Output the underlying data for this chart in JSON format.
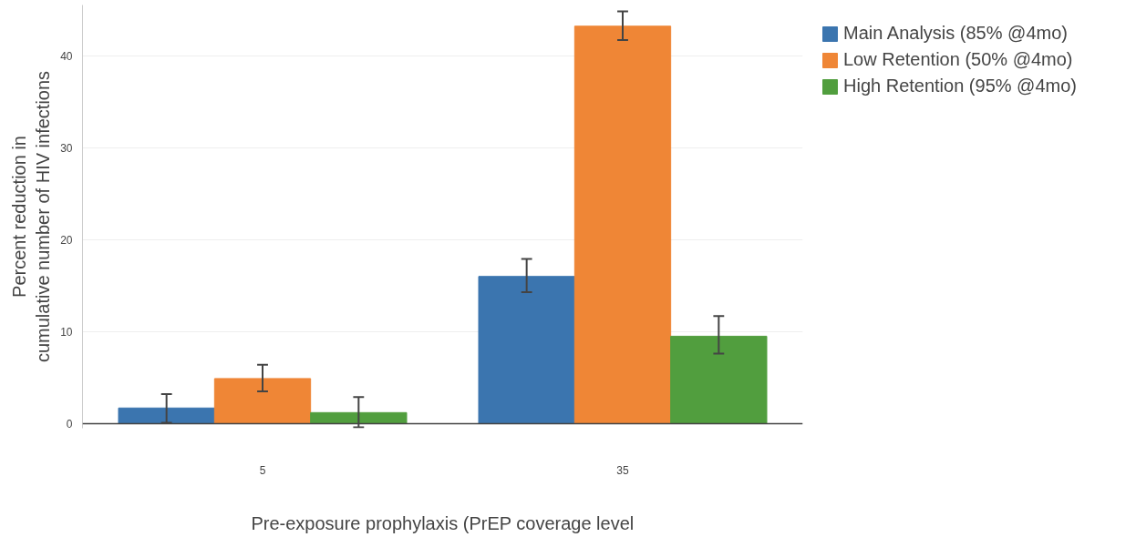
{
  "chart_data": {
    "type": "bar",
    "xlabel": "Pre-exposure prophylaxis (PrEP coverage level",
    "ylabel": "Percent reduction in\ncumulative number of HIV infections",
    "categories": [
      "5",
      "35"
    ],
    "series": [
      {
        "name": "Main Analysis (85% @4mo)",
        "color": "#3b75af",
        "values": [
          1.7,
          16.0
        ],
        "errors": [
          [
            0.1,
            3.2
          ],
          [
            14.3,
            17.9
          ]
        ]
      },
      {
        "name": "Low Retention (50% @4mo)",
        "color": "#ef8636",
        "values": [
          4.9,
          43.2
        ],
        "errors": [
          [
            3.5,
            6.4
          ],
          [
            41.7,
            44.8
          ]
        ]
      },
      {
        "name": "High Retention (95% @4mo)",
        "color": "#519e3e",
        "values": [
          1.2,
          9.5
        ],
        "errors": [
          [
            -0.4,
            2.9
          ],
          [
            7.6,
            11.7
          ]
        ]
      }
    ],
    "ylim": [
      -0.5,
      45.5
    ],
    "yticks": [
      0,
      10,
      20,
      30,
      40
    ],
    "grid": "y",
    "legend": "top right"
  }
}
